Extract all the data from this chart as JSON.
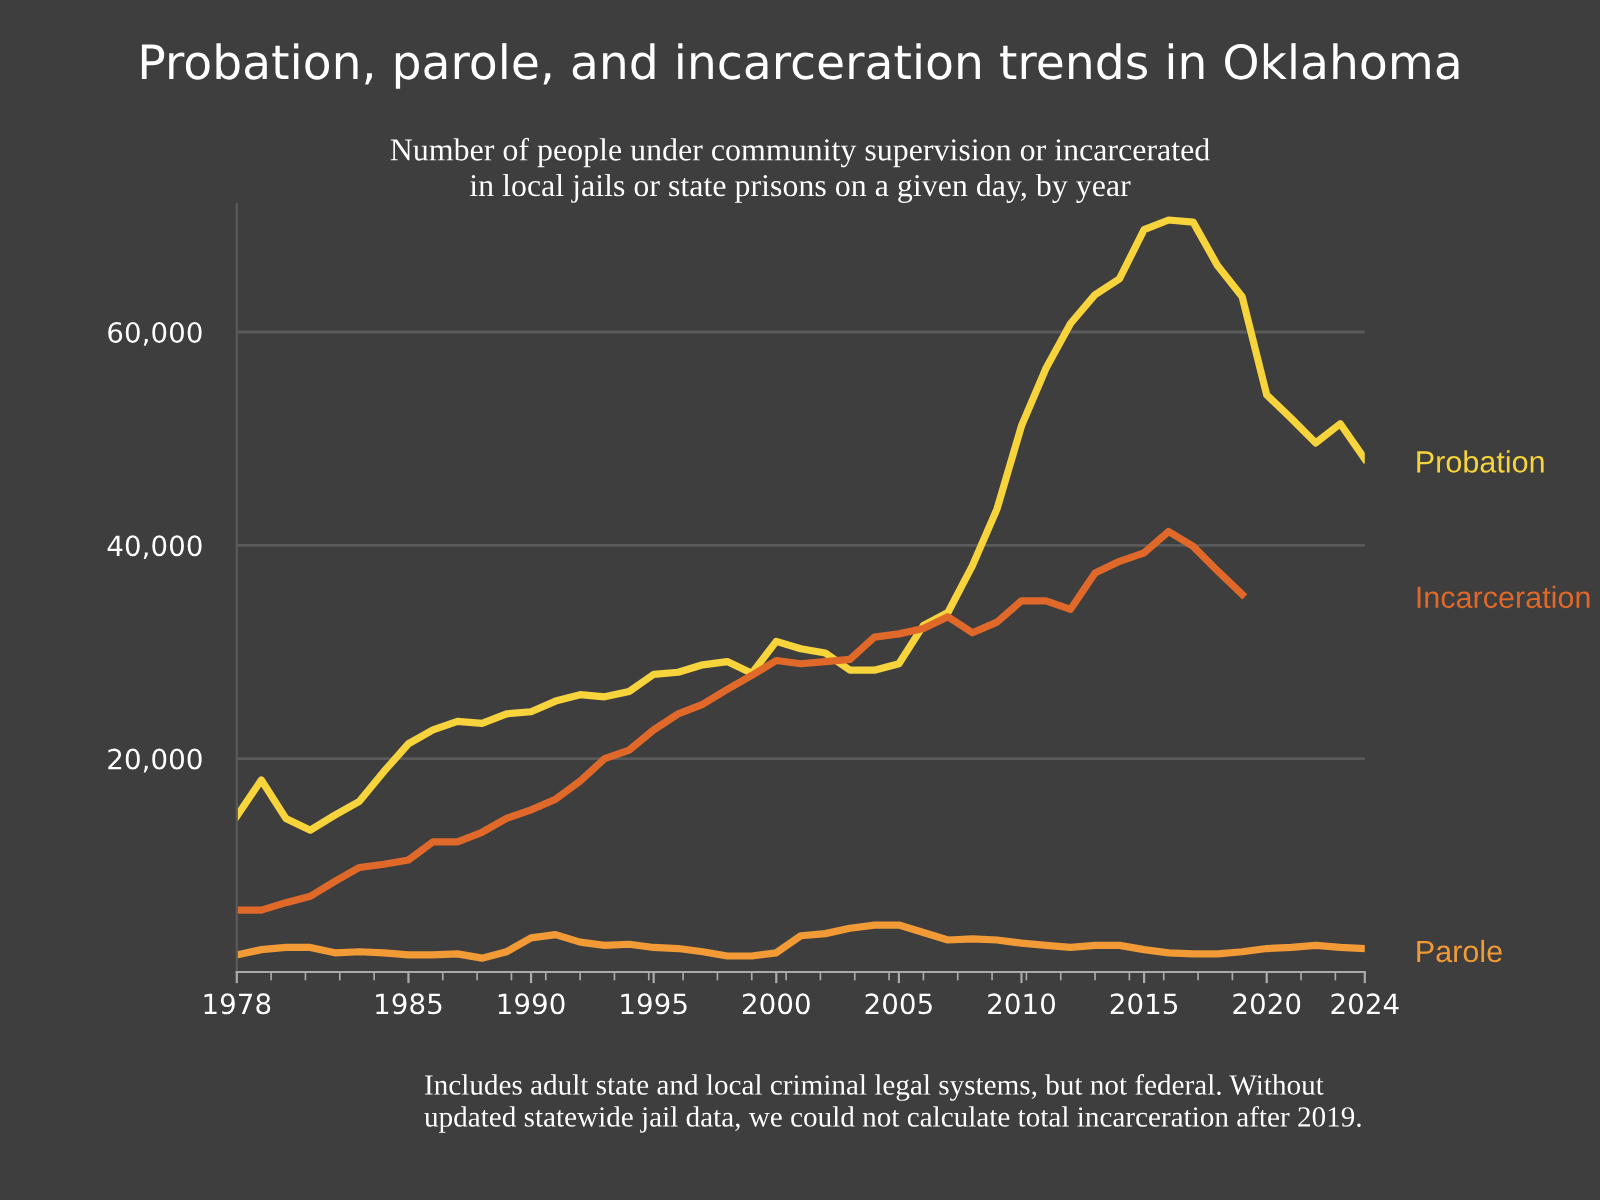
{
  "chart_data": {
    "type": "line",
    "title": "Probation, parole, and incarceration trends in Oklahoma",
    "subtitle": "Number of people under community supervision or incarcerated\nin local jails or state prisons on a given day, by year",
    "x": [
      1978,
      1979,
      1980,
      1981,
      1982,
      1983,
      1984,
      1985,
      1986,
      1987,
      1988,
      1989,
      1990,
      1991,
      1992,
      1993,
      1994,
      1995,
      1996,
      1997,
      1998,
      1999,
      2000,
      2001,
      2002,
      2003,
      2004,
      2005,
      2006,
      2007,
      2008,
      2009,
      2010,
      2011,
      2012,
      2013,
      2014,
      2015,
      2016,
      2017,
      2018,
      2019,
      2020,
      2021,
      2022,
      2023,
      2024
    ],
    "series": [
      {
        "name": "Probation",
        "color": "#f7d43c",
        "values": [
          14600,
          18000,
          14400,
          13300,
          14700,
          16000,
          18800,
          21400,
          22700,
          23500,
          23300,
          24200,
          24400,
          25400,
          26000,
          25800,
          26300,
          27900,
          28100,
          28800,
          29100,
          28000,
          31000,
          30300,
          29900,
          28300,
          28300,
          28900,
          32500,
          33700,
          38100,
          43400,
          51200,
          56600,
          60800,
          63500,
          65000,
          69600,
          70500,
          70300,
          66200,
          63300,
          54100,
          51900,
          49600,
          51400,
          48100
        ]
      },
      {
        "name": "Incarceration",
        "color": "#e0692a",
        "values": [
          5800,
          5800,
          6500,
          7100,
          8500,
          9800,
          10100,
          10500,
          12200,
          12200,
          13100,
          14400,
          15200,
          16200,
          17900,
          20000,
          20800,
          22700,
          24200,
          25100,
          26500,
          27800,
          29200,
          28900,
          29100,
          29300,
          31400,
          31700,
          32200,
          33300,
          31800,
          32800,
          34800,
          34800,
          34000,
          37400,
          38500,
          39300,
          41300,
          39900,
          37600,
          35400,
          null,
          null,
          null,
          null,
          null
        ]
      },
      {
        "name": "Parole",
        "color": "#f29a35",
        "values": [
          1600,
          2100,
          2300,
          2300,
          1800,
          1900,
          1800,
          1600,
          1600,
          1700,
          1300,
          1900,
          3200,
          3500,
          2800,
          2500,
          2600,
          2300,
          2200,
          1900,
          1500,
          1500,
          1800,
          3400,
          3600,
          4100,
          4400,
          4400,
          3700,
          3000,
          3100,
          3000,
          2700,
          2500,
          2300,
          2500,
          2500,
          2100,
          1800,
          1700,
          1700,
          1900,
          2200,
          2300,
          2500,
          2300,
          2200
        ]
      }
    ],
    "xlim": [
      1978,
      2024
    ],
    "xticks": [
      1978,
      1985,
      1990,
      1995,
      2000,
      2005,
      2010,
      2015,
      2020,
      2024
    ],
    "ylim": [
      0,
      72000
    ],
    "yticks": [
      {
        "value": 20000,
        "label": "20,000"
      },
      {
        "value": 40000,
        "label": "40,000"
      },
      {
        "value": 60000,
        "label": "60,000"
      }
    ],
    "grid": "y",
    "line_style": "solid",
    "annotations": [
      "Includes adult state and local criminal legal systems, but not federal. Without\nupdated statewide jail data, we could not calculate total incarceration after 2019."
    ]
  }
}
